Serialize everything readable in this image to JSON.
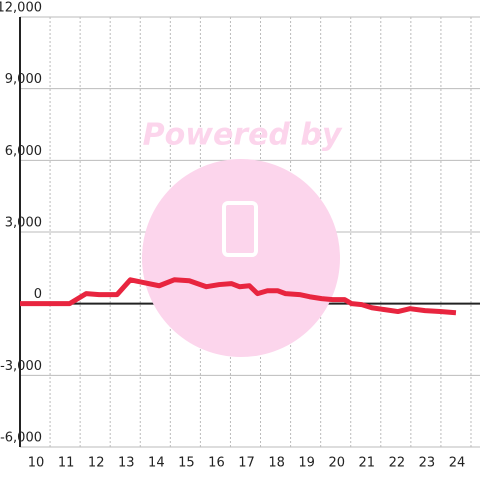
{
  "chart_data": {
    "type": "line",
    "watermark": "Powered by",
    "x": [
      9.0,
      10.65,
      11.2,
      11.63,
      12.23,
      12.67,
      13.13,
      13.63,
      14.13,
      14.63,
      15.2,
      15.63,
      16.03,
      16.3,
      16.63,
      16.9,
      17.23,
      17.57,
      17.83,
      18.3,
      18.63,
      19.03,
      19.4,
      19.8,
      20.03,
      20.37,
      20.7,
      21.13,
      21.57,
      21.97,
      22.47,
      22.97,
      23.5
    ],
    "series": [
      {
        "color": "#e8253f",
        "values": [
          0,
          0,
          420,
          380,
          380,
          1000,
          880,
          750,
          1000,
          960,
          710,
          800,
          840,
          710,
          750,
          420,
          540,
          540,
          420,
          380,
          290,
          210,
          170,
          170,
          0,
          -40,
          -170,
          -250,
          -330,
          -210,
          -290,
          -330,
          -380
        ]
      }
    ],
    "xlim": [
      9,
      24.3
    ],
    "xticks": [
      10,
      11,
      12,
      13,
      14,
      15,
      16,
      17,
      18,
      19,
      20,
      21,
      22,
      23,
      24
    ],
    "ylim": [
      -6000,
      12000
    ],
    "yticks": [
      {
        "value": -6000,
        "label": "-6,000"
      },
      {
        "value": -3000,
        "label": "-3,000"
      },
      0,
      {
        "value": 3000,
        "label": "3,000"
      },
      {
        "value": 6000,
        "label": "6,000"
      },
      {
        "value": 9000,
        "label": "9,000"
      },
      {
        "value": 12000,
        "label": "12,000"
      }
    ],
    "grid": true
  }
}
